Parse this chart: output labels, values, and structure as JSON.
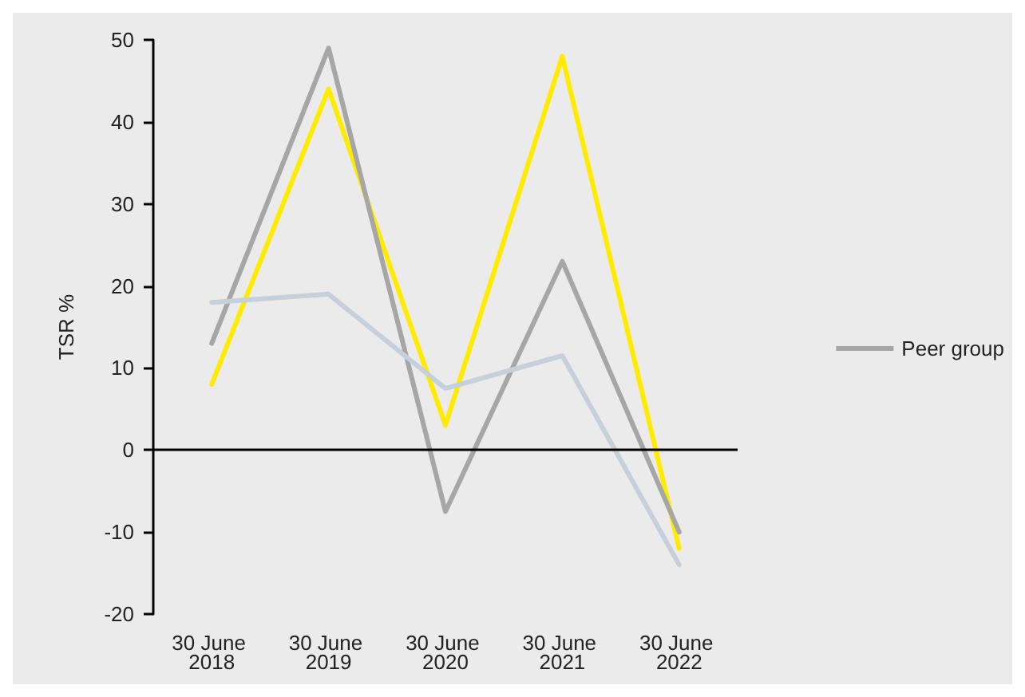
{
  "chart_data": {
    "type": "line",
    "ylabel": "TSR %",
    "categories": [
      "30 June 2018",
      "30 June 2019",
      "30 June 2020",
      "30 June 2021",
      "30 June 2022"
    ],
    "series": [
      {
        "color": "#ffeb00",
        "values": [
          8,
          44,
          3,
          48,
          -12
        ]
      },
      {
        "name": "Peer group",
        "color": "#a6a6a6",
        "values": [
          13,
          49,
          -7.5,
          23,
          -10
        ]
      },
      {
        "color": "#c5d0da",
        "values": [
          18,
          19,
          7.5,
          11.5,
          -14
        ]
      }
    ],
    "ylim": [
      -20,
      50
    ],
    "yticks": [
      -20,
      -10,
      0,
      10,
      20,
      30,
      40,
      50
    ],
    "ref_lines": [
      {
        "axis": "y",
        "value": 0,
        "color": "#000000"
      }
    ],
    "grid": false,
    "legend": "right",
    "marker": "none",
    "line_style": "solid"
  }
}
